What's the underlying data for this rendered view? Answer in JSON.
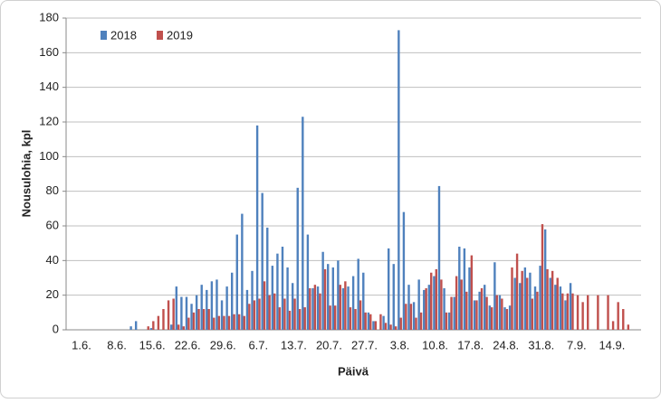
{
  "chart_data": {
    "type": "bar",
    "x_label": "Päivä",
    "y_label": "Nousulohia, kpl",
    "categories": [
      "1.6.",
      null,
      null,
      null,
      null,
      null,
      null,
      "8.6.",
      null,
      null,
      null,
      null,
      null,
      null,
      "15.6.",
      null,
      null,
      null,
      null,
      null,
      null,
      "22.6.",
      null,
      null,
      null,
      null,
      null,
      null,
      "29.6.",
      null,
      null,
      null,
      null,
      null,
      null,
      "6.7.",
      null,
      null,
      null,
      null,
      null,
      null,
      "13.7.",
      null,
      null,
      null,
      null,
      null,
      null,
      "20.7.",
      null,
      null,
      null,
      null,
      null,
      null,
      "27.7.",
      null,
      null,
      null,
      null,
      null,
      null,
      "3.8.",
      null,
      null,
      null,
      null,
      null,
      null,
      "10.8.",
      null,
      null,
      null,
      null,
      null,
      null,
      "17.8.",
      null,
      null,
      null,
      null,
      null,
      null,
      "24.8.",
      null,
      null,
      null,
      null,
      null,
      null,
      "31.8.",
      null,
      null,
      null,
      null,
      null,
      null,
      "7.9.",
      null,
      null,
      null,
      null,
      null,
      null,
      "14.9.",
      null,
      null,
      null
    ],
    "series": [
      {
        "name": "2018",
        "color": "#4f81bd",
        "values": [
          0,
          0,
          0,
          0,
          0,
          0,
          0,
          0,
          0,
          0,
          2,
          5,
          0,
          0,
          1,
          0,
          0,
          0,
          3,
          25,
          19,
          19,
          15,
          20,
          26,
          23,
          28,
          29,
          17,
          25,
          33,
          55,
          67,
          23,
          34,
          118,
          79,
          59,
          37,
          44,
          48,
          36,
          27,
          82,
          123,
          55,
          24,
          25,
          45,
          38,
          36,
          40,
          24,
          25,
          31,
          41,
          33,
          10,
          5,
          0,
          8,
          47,
          38,
          173,
          68,
          26,
          16,
          29,
          23,
          26,
          31,
          83,
          24,
          10,
          19,
          48,
          47,
          36,
          17,
          22,
          26,
          14,
          39,
          20,
          13,
          14,
          30,
          27,
          36,
          33,
          25,
          37,
          58,
          30,
          26,
          25,
          17,
          27,
          0,
          0,
          0,
          0,
          0,
          0,
          0,
          0,
          0,
          0,
          0
        ]
      },
      {
        "name": "2019",
        "color": "#c0504d",
        "values": [
          0,
          0,
          0,
          0,
          0,
          0,
          0,
          0,
          0,
          0,
          0,
          0,
          0,
          2,
          5,
          8,
          12,
          17,
          18,
          3,
          2,
          7,
          10,
          12,
          12,
          12,
          7,
          8,
          8,
          8,
          9,
          9,
          8,
          15,
          17,
          18,
          28,
          20,
          21,
          13,
          18,
          11,
          18,
          12,
          13,
          24,
          26,
          21,
          35,
          14,
          14,
          26,
          28,
          13,
          12,
          17,
          10,
          9,
          5,
          9,
          4,
          3,
          2,
          7,
          15,
          15,
          7,
          10,
          24,
          33,
          35,
          29,
          10,
          19,
          31,
          29,
          22,
          43,
          17,
          24,
          19,
          13,
          20,
          18,
          12,
          36,
          44,
          34,
          30,
          18,
          22,
          61,
          35,
          34,
          30,
          21,
          21,
          21,
          20,
          16,
          20,
          0,
          20,
          0,
          20,
          5,
          16,
          12,
          3
        ]
      }
    ],
    "ylim": [
      0,
      180
    ],
    "yticks": [
      0,
      20,
      40,
      60,
      80,
      100,
      120,
      140,
      160,
      180
    ],
    "grid": true,
    "legend": "top-left"
  }
}
